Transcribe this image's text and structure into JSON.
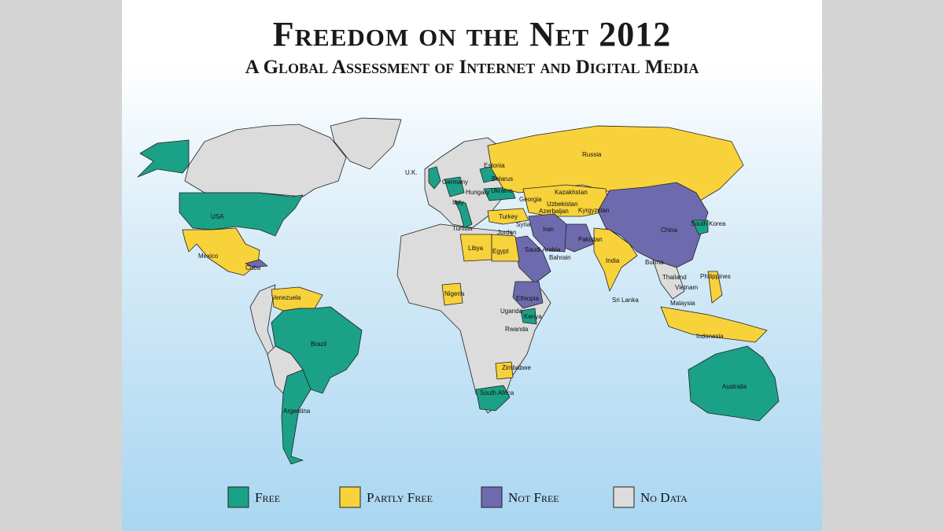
{
  "title": "Freedom on the Net 2012",
  "subtitle": "A Global Assessment of Internet and Digital Media",
  "legend": [
    {
      "label": "Free",
      "color": "#1ba187"
    },
    {
      "label": "Partly Free",
      "color": "#f8d23b"
    },
    {
      "label": "Not Free",
      "color": "#6e6aae"
    },
    {
      "label": "No Data",
      "color": "#dcdcdc"
    }
  ],
  "countries": [
    "U.K.",
    "Estonia",
    "Belarus",
    "Germany",
    "Hungary",
    "Ukraine",
    "Italy",
    "Georgia",
    "Kazakhstan",
    "Uzbekistan",
    "Azerbaijan",
    "Kyrgyzstan",
    "Turkey",
    "Russia",
    "Tunisia",
    "Syria",
    "Jordan",
    "Iran",
    "Pakistan",
    "China",
    "South Korea",
    "Libya",
    "Egypt",
    "Saudi Arabia",
    "Bahrain",
    "India",
    "Burma",
    "Thailand",
    "Philippines",
    "Vietnam",
    "Sri Lanka",
    "Malaysia",
    "Indonesia",
    "Australia",
    "Nigeria",
    "Ethiopia",
    "Uganda",
    "Kenya",
    "Rwanda",
    "Zimbabwe",
    "South Africa",
    "USA",
    "Mexico",
    "Cuba",
    "Venezuela",
    "Brazil",
    "Argentina"
  ]
}
